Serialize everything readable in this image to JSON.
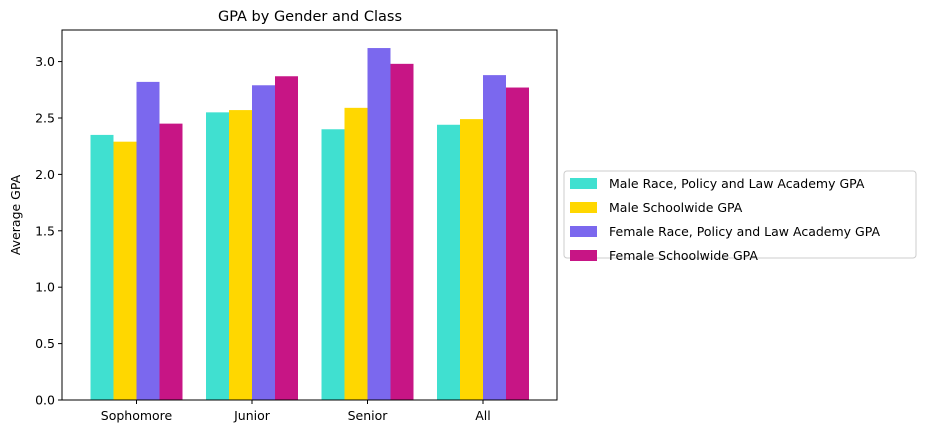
{
  "chart_data": {
    "type": "bar",
    "title": "GPA by Gender and Class",
    "xlabel": "",
    "ylabel": "Average GPA",
    "categories": [
      "Sophomore",
      "Junior",
      "Senior",
      "All"
    ],
    "ylim": [
      0,
      3.28
    ],
    "yticks": [
      "0.0",
      "0.5",
      "1.0",
      "1.5",
      "2.0",
      "2.5",
      "3.0"
    ],
    "grid": false,
    "legend_position": "right, outside",
    "series": [
      {
        "name": "Male Race, Policy and Law Academy GPA",
        "color": "#40e0d0",
        "values": [
          2.35,
          2.55,
          2.4,
          2.44
        ]
      },
      {
        "name": "Male Schoolwide GPA",
        "color": "#ffd700",
        "values": [
          2.29,
          2.57,
          2.59,
          2.49
        ]
      },
      {
        "name": "Female Race, Policy and Law Academy GPA",
        "color": "#7b68ee",
        "values": [
          2.82,
          2.79,
          3.12,
          2.88
        ]
      },
      {
        "name": "Female Schoolwide GPA",
        "color": "#c71585",
        "values": [
          2.45,
          2.87,
          2.98,
          2.77
        ]
      }
    ]
  }
}
